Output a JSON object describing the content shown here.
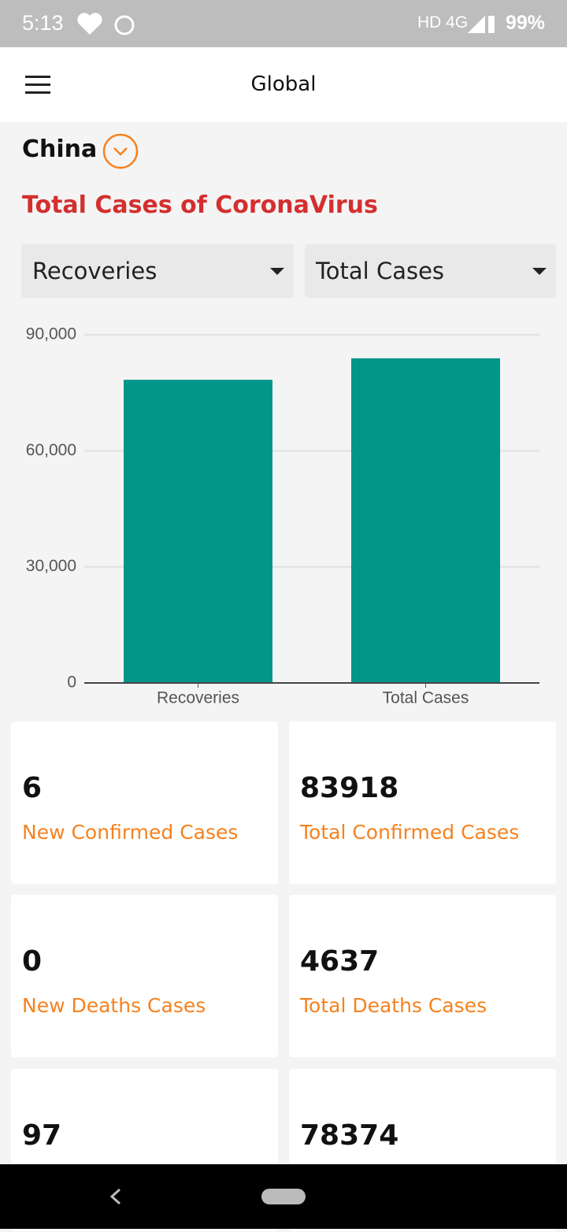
{
  "status": {
    "time": "5:13",
    "network": "HD 4G",
    "battery": "99%"
  },
  "header": {
    "title": "Global"
  },
  "country": "China",
  "section_title": "Total Cases of CoronaVirus",
  "selectors": [
    "Recoveries",
    "Total Cases"
  ],
  "chart_data": {
    "type": "bar",
    "categories": [
      "Recoveries",
      "Total Cases"
    ],
    "values": [
      78374,
      83918
    ],
    "color": "#009688",
    "ylim": [
      0,
      90000
    ],
    "yticks": [
      0,
      {
        "value": 30000,
        "label": "30,000"
      },
      {
        "value": 60000,
        "label": "60,000"
      },
      {
        "value": 90000,
        "label": "90,000"
      }
    ],
    "grid": true
  },
  "cards": [
    {
      "value": "6",
      "label": "New Confirmed Cases"
    },
    {
      "value": "83918",
      "label": "Total Confirmed Cases"
    },
    {
      "value": "0",
      "label": "New Deaths Cases"
    },
    {
      "value": "4637",
      "label": "Total Deaths Cases"
    },
    {
      "value": "97"
    },
    {
      "value": "78374"
    }
  ]
}
